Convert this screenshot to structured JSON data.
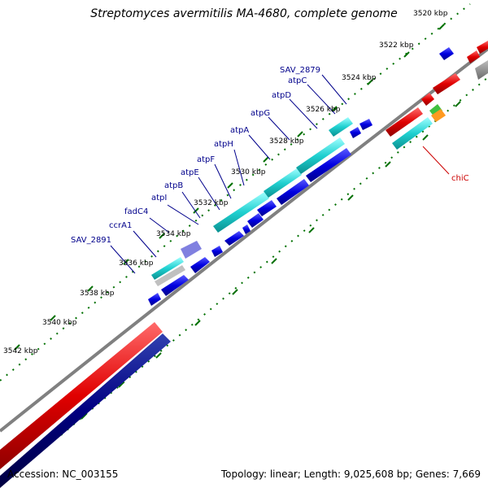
{
  "title": "Streptomyces avermitilis MA-4680, complete genome",
  "footer": {
    "accession": "Accession: NC_003155",
    "summary": "Topology: linear; Length: 9,025,608 bp; Genes: 7,669"
  },
  "ruler_ticks": [
    "3520 kbp",
    "3522 kbp",
    "3524 kbp",
    "3526 kbp",
    "3528 kbp",
    "3530 kbp",
    "3532 kbp",
    "3534 kbp",
    "3536 kbp",
    "3538 kbp",
    "3540 kbp",
    "3542 kbp"
  ],
  "gene_labels": [
    "SAV_2879",
    "atpC",
    "atpD",
    "atpG",
    "atpA",
    "atpH",
    "atpF",
    "atpE",
    "atpB",
    "atpI",
    "fadC4",
    "ccrA1",
    "SAV_2891"
  ],
  "other_labels": [
    "chiC"
  ],
  "colors": {
    "backbone": "#808080",
    "gene_blue": "#0000e0",
    "gene_cyan": "#1fd0d0",
    "gene_red": "#e00000",
    "gene_navy": "#000080",
    "tick_green": "#007000",
    "label_blue": "#00008b",
    "label_red": "#cc0000"
  }
}
